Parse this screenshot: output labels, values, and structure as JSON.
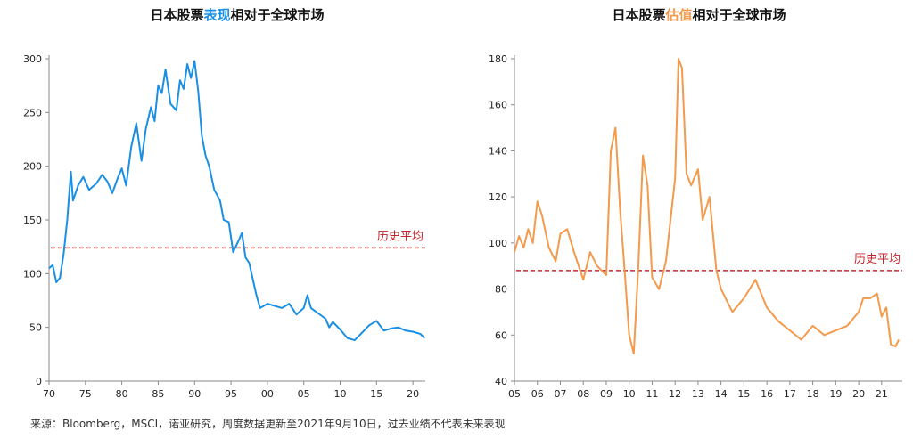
{
  "footer": "来源：Bloomberg，MSCI，诺亚研究，周度数据更新至2021年9月10日，过去业绩不代表未来表现",
  "chart_data": [
    {
      "type": "line",
      "title_parts": [
        "日本股票",
        "表现",
        "相对于全球市场"
      ],
      "highlight_color": "#1a8fe3",
      "line_color": "#1a8fe3",
      "ylim": [
        0,
        300
      ],
      "yticks": [
        0,
        50,
        100,
        150,
        200,
        250,
        300
      ],
      "xlim": [
        1970,
        2021.7
      ],
      "xticks": [
        1970,
        1975,
        1980,
        1985,
        1990,
        1995,
        2000,
        2005,
        2010,
        2015,
        2020
      ],
      "xtick_labels": [
        "70",
        "75",
        "80",
        "85",
        "90",
        "95",
        "00",
        "05",
        "10",
        "15",
        "20"
      ],
      "hline": {
        "label": "历史平均",
        "value": 124,
        "color": "#c0272d"
      },
      "series": [
        {
          "x": [
            1970,
            1970.5,
            1971,
            1971.5,
            1972,
            1972.5,
            1973,
            1973.3,
            1974,
            1974.7,
            1975.5,
            1976.5,
            1977.3,
            1978,
            1978.7,
            1979.5,
            1980,
            1980.6,
            1981.3,
            1982,
            1982.7,
            1983.3,
            1984,
            1984.5,
            1985,
            1985.5,
            1986,
            1986.7,
            1987.5,
            1988,
            1988.5,
            1989,
            1989.5,
            1990,
            1990.5,
            1991,
            1991.5,
            1992,
            1992.7,
            1993.5,
            1994,
            1994.7,
            1995.3,
            1996,
            1996.5,
            1997,
            1997.5,
            1998,
            1998.5,
            1999,
            2000,
            2001,
            2002,
            2003,
            2004,
            2005,
            2005.5,
            2006,
            2007,
            2008,
            2008.5,
            2009,
            2010,
            2011,
            2012,
            2013,
            2014,
            2015,
            2016,
            2017,
            2018,
            2019,
            2020,
            2021,
            2021.6
          ],
          "y": [
            105,
            108,
            92,
            96,
            118,
            150,
            195,
            168,
            182,
            190,
            178,
            184,
            192,
            186,
            175,
            190,
            198,
            182,
            218,
            240,
            205,
            235,
            255,
            242,
            275,
            268,
            290,
            258,
            252,
            280,
            272,
            295,
            282,
            298,
            270,
            228,
            210,
            200,
            178,
            168,
            150,
            148,
            120,
            130,
            138,
            115,
            110,
            95,
            80,
            68,
            72,
            70,
            68,
            72,
            62,
            68,
            80,
            68,
            63,
            58,
            50,
            55,
            48,
            40,
            38,
            45,
            52,
            56,
            47,
            49,
            50,
            47,
            46,
            44,
            40
          ]
        }
      ]
    },
    {
      "type": "line",
      "title_parts": [
        "日本股票",
        "估值",
        "相对于全球市场"
      ],
      "highlight_color": "#f39a4c",
      "line_color": "#f39a4c",
      "ylim": [
        40,
        180
      ],
      "yticks": [
        40,
        60,
        80,
        100,
        120,
        140,
        160,
        180
      ],
      "xlim": [
        2005,
        2021.9
      ],
      "xticks": [
        2005,
        2006,
        2007,
        2008,
        2009,
        2010,
        2011,
        2012,
        2013,
        2014,
        2015,
        2016,
        2017,
        2018,
        2019,
        2020,
        2021
      ],
      "xtick_labels": [
        "05",
        "06",
        "07",
        "08",
        "09",
        "10",
        "11",
        "12",
        "13",
        "14",
        "15",
        "16",
        "17",
        "18",
        "19",
        "20",
        "21"
      ],
      "hline": {
        "label": "历史平均",
        "value": 88,
        "color": "#c0272d"
      },
      "series": [
        {
          "x": [
            2005,
            2005.2,
            2005.4,
            2005.6,
            2005.8,
            2006,
            2006.2,
            2006.5,
            2006.8,
            2007,
            2007.3,
            2007.6,
            2008,
            2008.3,
            2008.6,
            2009,
            2009.2,
            2009.4,
            2009.6,
            2009.8,
            2010,
            2010.2,
            2010.4,
            2010.6,
            2010.8,
            2011,
            2011.3,
            2011.6,
            2012,
            2012.15,
            2012.3,
            2012.5,
            2012.7,
            2013,
            2013.2,
            2013.5,
            2013.8,
            2014,
            2014.5,
            2015,
            2015.5,
            2016,
            2016.5,
            2017,
            2017.5,
            2018,
            2018.5,
            2019,
            2019.5,
            2020,
            2020.2,
            2020.5,
            2020.8,
            2021,
            2021.2,
            2021.4,
            2021.6,
            2021.75
          ],
          "y": [
            96,
            103,
            98,
            106,
            100,
            118,
            112,
            98,
            92,
            104,
            106,
            96,
            84,
            96,
            90,
            86,
            140,
            150,
            115,
            88,
            60,
            52,
            90,
            138,
            125,
            85,
            80,
            92,
            128,
            180,
            176,
            130,
            125,
            132,
            110,
            120,
            88,
            80,
            70,
            76,
            84,
            72,
            66,
            62,
            58,
            64,
            60,
            62,
            64,
            70,
            76,
            76,
            78,
            68,
            72,
            56,
            55,
            58
          ]
        }
      ]
    }
  ]
}
